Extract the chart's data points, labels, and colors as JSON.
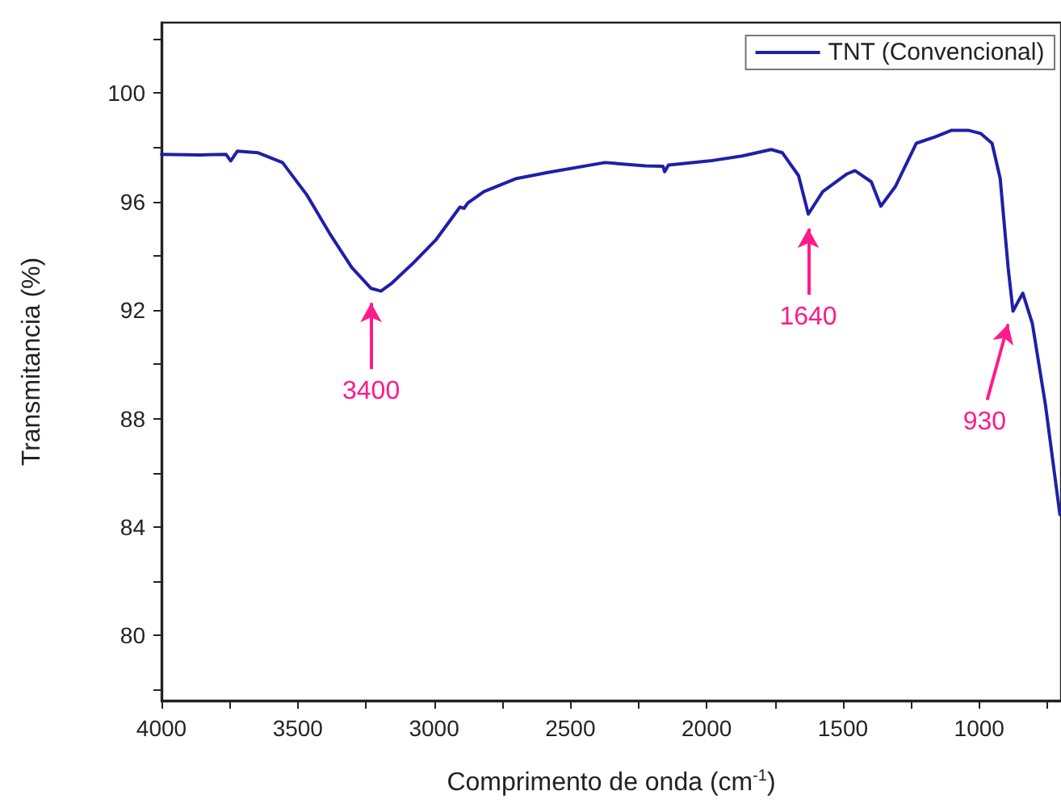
{
  "chart_data": {
    "type": "line",
    "xlabel": "Comprimento de onda (cm$^{-1}$)",
    "ylabel": "Transmitancia (%)",
    "legend": "top right",
    "marker": "none",
    "xlim": [
      4000,
      700
    ],
    "ylim": [
      77.6,
      102.6
    ],
    "xticks": [
      4000,
      {
        "value": 3750,
        "label": null
      },
      3500,
      {
        "value": 3250,
        "label": null
      },
      3000,
      {
        "value": 2750,
        "label": null
      },
      2500,
      {
        "value": 2250,
        "label": null
      },
      2000,
      {
        "value": 1750,
        "label": null
      },
      1500,
      {
        "value": 1250,
        "label": null
      },
      1000,
      {
        "value": 750,
        "label": null
      }
    ],
    "yticks": [
      {
        "value": 78,
        "label": null
      },
      80,
      {
        "value": 82,
        "label": null
      },
      84,
      {
        "value": 86,
        "label": null
      },
      88,
      {
        "value": 90,
        "label": null
      },
      92,
      {
        "value": 94,
        "label": null
      },
      96,
      {
        "value": 98,
        "label": null
      },
      100,
      {
        "value": 102,
        "label": null
      }
    ],
    "series": [
      {
        "name": "TNT (Convencional)",
        "color": "#1f1fa8",
        "x": [
          4000,
          3860,
          3763,
          3746,
          3722,
          3645,
          3556,
          3467,
          3379,
          3302,
          3231,
          3195,
          3154,
          3080,
          2994,
          2905,
          2890,
          2876,
          2817,
          2698,
          2580,
          2373,
          2225,
          2160,
          2154,
          2140,
          1988,
          1870,
          1763,
          1722,
          1663,
          1627,
          1574,
          1485,
          1456,
          1396,
          1361,
          1308,
          1231,
          1160,
          1101,
          1041,
          994,
          953,
          923,
          894,
          876,
          858,
          840,
          805,
          757,
          704
        ],
        "values": [
          97.74,
          97.72,
          97.74,
          97.5,
          97.86,
          97.8,
          97.44,
          96.25,
          94.76,
          93.57,
          92.8,
          92.7,
          93.0,
          93.7,
          94.58,
          95.8,
          95.75,
          95.95,
          96.37,
          96.85,
          97.08,
          97.44,
          97.32,
          97.3,
          97.1,
          97.35,
          97.5,
          97.68,
          97.92,
          97.8,
          96.96,
          95.54,
          96.37,
          97.02,
          97.14,
          96.73,
          95.83,
          96.55,
          98.15,
          98.39,
          98.63,
          98.63,
          98.51,
          98.15,
          96.85,
          93.57,
          91.96,
          92.3,
          92.62,
          91.5,
          88.5,
          84.46
        ]
      }
    ],
    "annotations": [
      {
        "text": "3400",
        "x": 3231,
        "y": 92.8
      },
      {
        "text": "1640",
        "x": 1627,
        "y": 95.54
      },
      {
        "text": "930",
        "x": 876,
        "y": 91.96
      }
    ]
  }
}
